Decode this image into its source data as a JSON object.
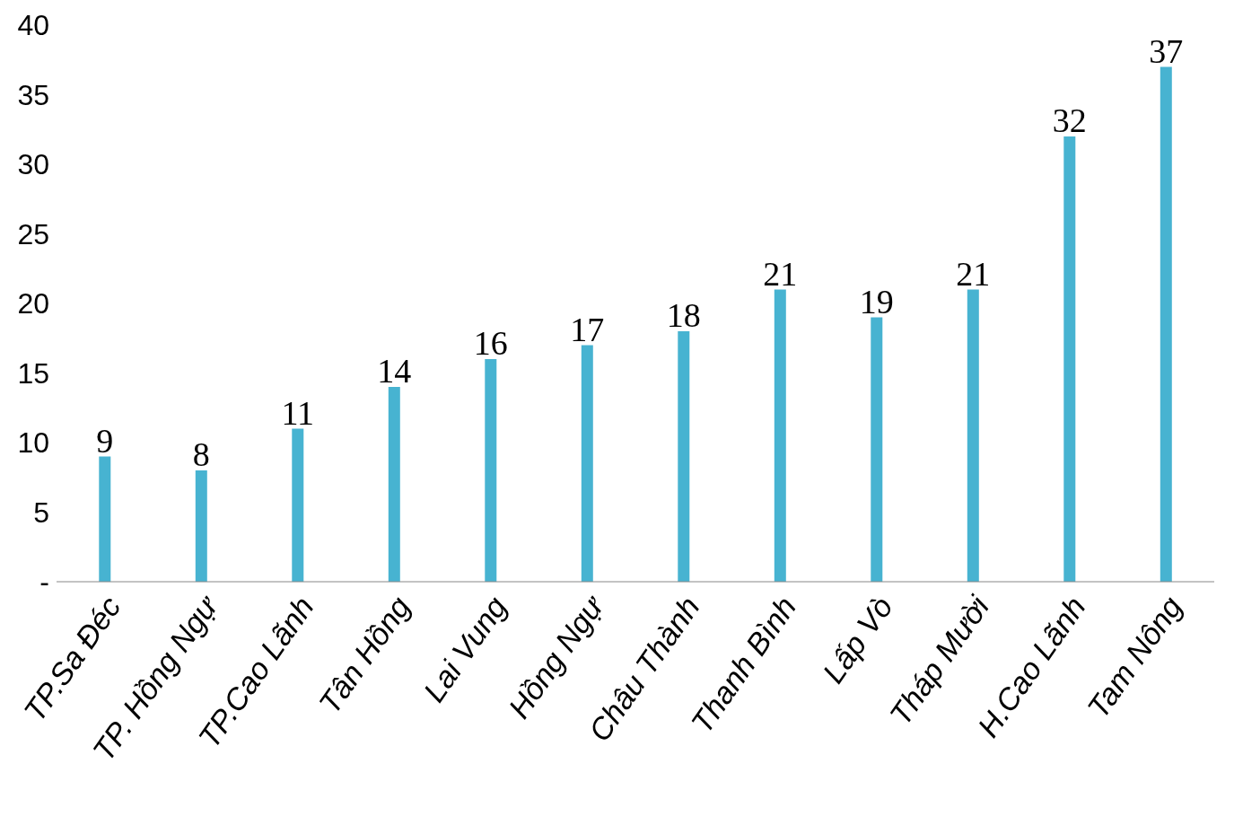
{
  "chart_data": {
    "type": "bar",
    "categories": [
      "TP.Sa Đéc",
      "TP. Hồng Ngự",
      "TP.Cao Lãnh",
      "Tân Hồng",
      "Lai Vung",
      "Hồng Ngự",
      "Châu Thành",
      "Thanh Bình",
      "Lấp Vò",
      "Tháp Mười",
      "H.Cao Lãnh",
      "Tam Nông"
    ],
    "values": [
      9,
      8,
      11,
      14,
      16,
      17,
      18,
      21,
      19,
      21,
      32,
      37
    ],
    "color": "#47b3d1",
    "ylim": [
      0,
      40
    ],
    "yticks": [
      {
        "value": 0,
        "label": "-"
      },
      5,
      10,
      15,
      20,
      25,
      30,
      35,
      40
    ],
    "grid": false,
    "legend": false,
    "data_labels": true
  }
}
